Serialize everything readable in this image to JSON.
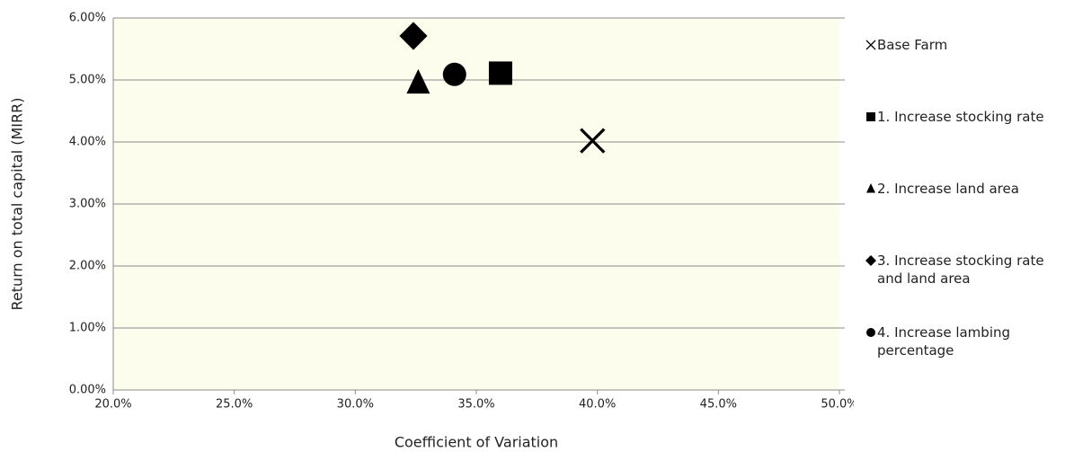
{
  "chart_data": {
    "type": "scatter",
    "x_label": "Coefficient of Variation",
    "y_label": "Return on total capital (MIRR)",
    "xlim": [
      20,
      50
    ],
    "xticks": [
      {
        "value": 20,
        "label": "20.0%"
      },
      {
        "value": 25,
        "label": "25.0%"
      },
      {
        "value": 30,
        "label": "30.0%"
      },
      {
        "value": 35,
        "label": "35.0%"
      },
      {
        "value": 40,
        "label": "40.0%"
      },
      {
        "value": 45,
        "label": "45.0%"
      },
      {
        "value": 50,
        "label": "50.0%"
      }
    ],
    "ylim": [
      0,
      6
    ],
    "yticks": [
      {
        "value": 0,
        "label": "0.00%"
      },
      {
        "value": 1,
        "label": "1.00%"
      },
      {
        "value": 2,
        "label": "2.00%"
      },
      {
        "value": 3,
        "label": "3.00%"
      },
      {
        "value": 4,
        "label": "4.00%"
      },
      {
        "value": 5,
        "label": "5.00%"
      },
      {
        "value": 6,
        "label": "6.00%"
      }
    ],
    "grid": true,
    "legend": "right",
    "series": [
      {
        "name": "Base Farm",
        "marker": "x",
        "color": "#000000",
        "x": [
          39.8
        ],
        "values": [
          4.02
        ]
      },
      {
        "name": "1. Increase stocking rate",
        "marker": "square",
        "color": "#000000",
        "x": [
          36.0
        ],
        "values": [
          5.11
        ]
      },
      {
        "name": "2. Increase land area",
        "marker": "triangle",
        "color": "#000000",
        "x": [
          32.6
        ],
        "values": [
          4.95
        ]
      },
      {
        "name": "3. Increase stocking rate and land area",
        "marker": "diamond",
        "color": "#000000",
        "x": [
          32.4
        ],
        "values": [
          5.71
        ]
      },
      {
        "name": "4. Increase lambing percentage",
        "marker": "circle",
        "color": "#000000",
        "x": [
          34.1
        ],
        "values": [
          5.09
        ]
      }
    ]
  }
}
